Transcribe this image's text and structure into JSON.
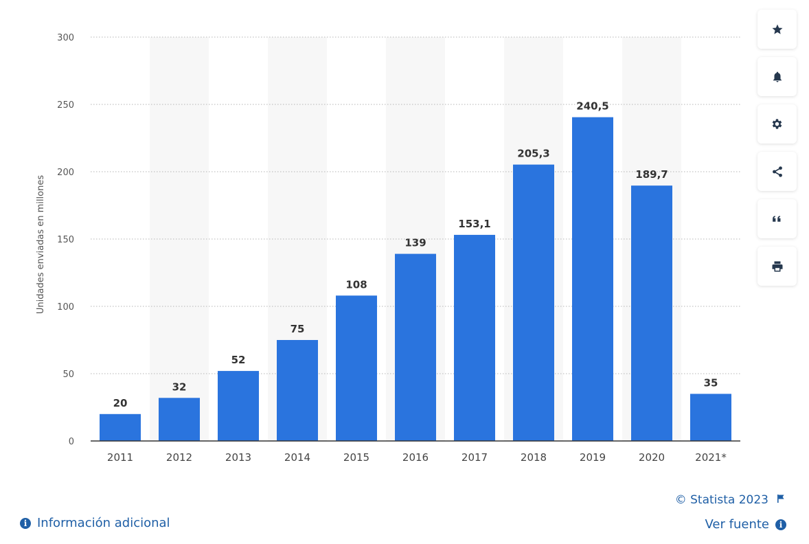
{
  "chart_data": {
    "type": "bar",
    "categories": [
      "2011",
      "2012",
      "2013",
      "2014",
      "2015",
      "2016",
      "2017",
      "2018",
      "2019",
      "2020",
      "2021*"
    ],
    "values": [
      20,
      32,
      52,
      75,
      108,
      139,
      153.1,
      205.3,
      240.5,
      189.7,
      35
    ],
    "value_labels": [
      "20",
      "32",
      "52",
      "75",
      "108",
      "139",
      "153,1",
      "205,3",
      "240,5",
      "189,7",
      "35"
    ],
    "title": "",
    "xlabel": "",
    "ylabel": "Unidades enviadas en millones",
    "ylim": [
      0,
      300
    ],
    "yticks": [
      0,
      50,
      100,
      150,
      200,
      250,
      300
    ],
    "grid": "horizontal-dotted",
    "bar_color": "#2a74de",
    "alt_band_color": "#f7f7f7"
  },
  "toolbar": {
    "items": [
      {
        "name": "favorite",
        "icon": "star-icon"
      },
      {
        "name": "notify",
        "icon": "bell-icon"
      },
      {
        "name": "settings",
        "icon": "gear-icon"
      },
      {
        "name": "share",
        "icon": "share-icon"
      },
      {
        "name": "cite",
        "icon": "quote-icon"
      },
      {
        "name": "print",
        "icon": "print-icon"
      }
    ]
  },
  "footer": {
    "copyright": "© Statista 2023",
    "info_label": "Información adicional",
    "source_label": "Ver fuente",
    "link_color": "#1f5fa6"
  }
}
